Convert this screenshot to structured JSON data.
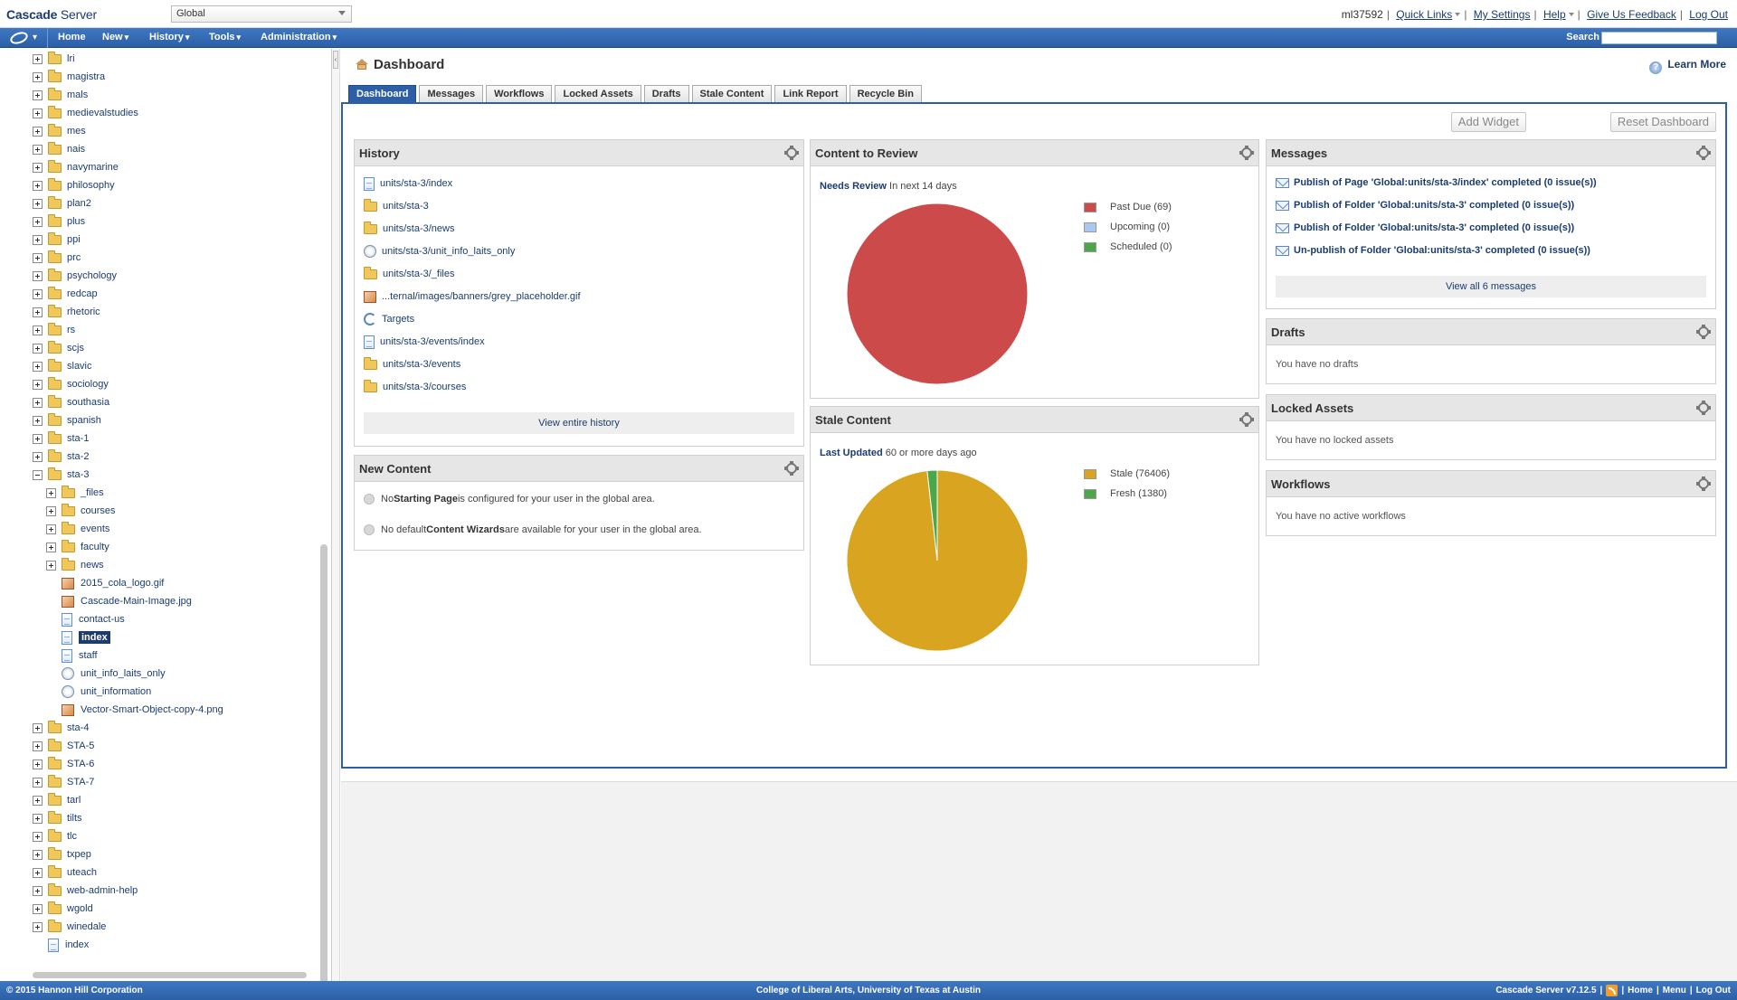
{
  "app": {
    "logo_bold": "Cascade",
    "logo_thin": " Server"
  },
  "site_selector": {
    "value": "Global"
  },
  "top_links": {
    "user": "ml37592",
    "quick_links": "Quick Links",
    "my_settings": "My Settings",
    "help": "Help",
    "feedback": "Give Us Feedback",
    "logout": "Log Out"
  },
  "nav": {
    "home": "Home",
    "new": "New",
    "history": "History",
    "tools": "Tools",
    "administration": "Administration",
    "search_label": "Search",
    "search_value": ""
  },
  "tree": {
    "items": [
      {
        "label": "lri",
        "type": "folder",
        "depth": 0,
        "toggle": "plus"
      },
      {
        "label": "magistra",
        "type": "folder",
        "depth": 0,
        "toggle": "plus"
      },
      {
        "label": "mals",
        "type": "folder",
        "depth": 0,
        "toggle": "plus"
      },
      {
        "label": "medievalstudies",
        "type": "folder",
        "depth": 0,
        "toggle": "plus"
      },
      {
        "label": "mes",
        "type": "folder",
        "depth": 0,
        "toggle": "plus"
      },
      {
        "label": "nais",
        "type": "folder",
        "depth": 0,
        "toggle": "plus"
      },
      {
        "label": "navymarine",
        "type": "folder",
        "depth": 0,
        "toggle": "plus"
      },
      {
        "label": "philosophy",
        "type": "folder",
        "depth": 0,
        "toggle": "plus"
      },
      {
        "label": "plan2",
        "type": "folder",
        "depth": 0,
        "toggle": "plus"
      },
      {
        "label": "plus",
        "type": "folder",
        "depth": 0,
        "toggle": "plus"
      },
      {
        "label": "ppi",
        "type": "folder",
        "depth": 0,
        "toggle": "plus"
      },
      {
        "label": "prc",
        "type": "folder",
        "depth": 0,
        "toggle": "plus"
      },
      {
        "label": "psychology",
        "type": "folder",
        "depth": 0,
        "toggle": "plus"
      },
      {
        "label": "redcap",
        "type": "folder",
        "depth": 0,
        "toggle": "plus"
      },
      {
        "label": "rhetoric",
        "type": "folder",
        "depth": 0,
        "toggle": "plus"
      },
      {
        "label": "rs",
        "type": "folder",
        "depth": 0,
        "toggle": "plus"
      },
      {
        "label": "scjs",
        "type": "folder",
        "depth": 0,
        "toggle": "plus"
      },
      {
        "label": "slavic",
        "type": "folder",
        "depth": 0,
        "toggle": "plus"
      },
      {
        "label": "sociology",
        "type": "folder",
        "depth": 0,
        "toggle": "plus"
      },
      {
        "label": "southasia",
        "type": "folder",
        "depth": 0,
        "toggle": "plus"
      },
      {
        "label": "spanish",
        "type": "folder",
        "depth": 0,
        "toggle": "plus"
      },
      {
        "label": "sta-1",
        "type": "folder",
        "depth": 0,
        "toggle": "plus"
      },
      {
        "label": "sta-2",
        "type": "folder",
        "depth": 0,
        "toggle": "plus"
      },
      {
        "label": "sta-3",
        "type": "folder",
        "depth": 0,
        "toggle": "minus"
      },
      {
        "label": "_files",
        "type": "folder",
        "depth": 1,
        "toggle": "plus"
      },
      {
        "label": "courses",
        "type": "folder",
        "depth": 1,
        "toggle": "plus"
      },
      {
        "label": "events",
        "type": "folder",
        "depth": 1,
        "toggle": "plus"
      },
      {
        "label": "faculty",
        "type": "folder",
        "depth": 1,
        "toggle": "plus"
      },
      {
        "label": "news",
        "type": "folder",
        "depth": 1,
        "toggle": "plus"
      },
      {
        "label": "2015_cola_logo.gif",
        "type": "image",
        "depth": 1,
        "toggle": "none"
      },
      {
        "label": "Cascade-Main-Image.jpg",
        "type": "image",
        "depth": 1,
        "toggle": "none"
      },
      {
        "label": "contact-us",
        "type": "page",
        "depth": 1,
        "toggle": "none"
      },
      {
        "label": "index",
        "type": "page",
        "depth": 1,
        "toggle": "none",
        "selected": true
      },
      {
        "label": "staff",
        "type": "page",
        "depth": 1,
        "toggle": "none"
      },
      {
        "label": "unit_info_laits_only",
        "type": "block",
        "depth": 1,
        "toggle": "none"
      },
      {
        "label": "unit_information",
        "type": "block",
        "depth": 1,
        "toggle": "none"
      },
      {
        "label": "Vector-Smart-Object-copy-4.png",
        "type": "image",
        "depth": 1,
        "toggle": "none"
      },
      {
        "label": "sta-4",
        "type": "folder",
        "depth": 0,
        "toggle": "plus"
      },
      {
        "label": "STA-5",
        "type": "folder",
        "depth": 0,
        "toggle": "plus"
      },
      {
        "label": "STA-6",
        "type": "folder",
        "depth": 0,
        "toggle": "plus"
      },
      {
        "label": "STA-7",
        "type": "folder",
        "depth": 0,
        "toggle": "plus"
      },
      {
        "label": "tarl",
        "type": "folder",
        "depth": 0,
        "toggle": "plus"
      },
      {
        "label": "tilts",
        "type": "folder",
        "depth": 0,
        "toggle": "plus"
      },
      {
        "label": "tlc",
        "type": "folder",
        "depth": 0,
        "toggle": "plus"
      },
      {
        "label": "txpep",
        "type": "folder",
        "depth": 0,
        "toggle": "plus"
      },
      {
        "label": "uteach",
        "type": "folder",
        "depth": 0,
        "toggle": "plus"
      },
      {
        "label": "web-admin-help",
        "type": "folder",
        "depth": 0,
        "toggle": "plus"
      },
      {
        "label": "wgold",
        "type": "folder",
        "depth": 0,
        "toggle": "plus"
      },
      {
        "label": "winedale",
        "type": "folder",
        "depth": 0,
        "toggle": "plus"
      },
      {
        "label": "index",
        "type": "page",
        "depth": 0,
        "toggle": "none"
      }
    ]
  },
  "dashboard": {
    "title": "Dashboard",
    "learn_more": "Learn More",
    "tabs": [
      "Dashboard",
      "Messages",
      "Workflows",
      "Locked Assets",
      "Drafts",
      "Stale Content",
      "Link Report",
      "Recycle Bin"
    ],
    "add_widget": "Add Widget",
    "reset_dashboard": "Reset Dashboard"
  },
  "history_widget": {
    "title": "History",
    "items": [
      {
        "label": "units/sta-3/index",
        "type": "page"
      },
      {
        "label": "units/sta-3",
        "type": "folder"
      },
      {
        "label": "units/sta-3/news",
        "type": "folder"
      },
      {
        "label": "units/sta-3/unit_info_laits_only",
        "type": "block"
      },
      {
        "label": "units/sta-3/_files",
        "type": "folder"
      },
      {
        "label": "...ternal/images/banners/grey_placeholder.gif",
        "type": "image"
      },
      {
        "label": "Targets",
        "type": "target"
      },
      {
        "label": "units/sta-3/events/index",
        "type": "page"
      },
      {
        "label": "units/sta-3/events",
        "type": "folder"
      },
      {
        "label": "units/sta-3/courses",
        "type": "folder"
      }
    ],
    "view_all": "View entire history"
  },
  "new_content_widget": {
    "title": "New Content",
    "line1_pre": "No ",
    "line1_bold": "Starting Page",
    "line1_post": " is configured for your user in the global area.",
    "line2_pre": "No default ",
    "line2_bold": "Content Wizards",
    "line2_post": " are available for your user in the global area."
  },
  "review_widget": {
    "title": "Content to Review",
    "caption_bold": "Needs Review",
    "caption_rest": " In next 14 days",
    "legend": [
      "Past Due (69)",
      "Upcoming (0)",
      "Scheduled (0)"
    ]
  },
  "stale_widget": {
    "title": "Stale Content",
    "caption_bold": "Last Updated",
    "caption_rest": " 60 or more days ago",
    "legend": [
      "Stale (76406)",
      "Fresh (1380)"
    ]
  },
  "messages_widget": {
    "title": "Messages",
    "items": [
      "Publish of Page 'Global:units/sta-3/index' completed (0 issue(s))",
      "Publish of Folder 'Global:units/sta-3' completed (0 issue(s))",
      "Publish of Folder 'Global:units/sta-3' completed (0 issue(s))",
      "Un-publish of Folder 'Global:units/sta-3' completed (0 issue(s))"
    ],
    "view_all": "View all 6 messages"
  },
  "drafts_widget": {
    "title": "Drafts",
    "empty": "You have no drafts"
  },
  "locked_widget": {
    "title": "Locked Assets",
    "empty": "You have no locked assets"
  },
  "workflows_widget": {
    "title": "Workflows",
    "empty": "You have no active workflows"
  },
  "footer": {
    "copyright": "© 2015 Hannon Hill Corporation",
    "center": "College of Liberal Arts, University of Texas at Austin",
    "version": "Cascade Server v7.12.5",
    "home": "Home",
    "menu": "Menu",
    "logout": "Log Out"
  },
  "chart_data": [
    {
      "type": "pie",
      "title": "Content to Review",
      "categories": [
        "Past Due",
        "Upcoming",
        "Scheduled"
      ],
      "values": [
        69,
        0,
        0
      ],
      "colors": [
        "#cc4a4a",
        "#a9c8ef",
        "#4aa84a"
      ]
    },
    {
      "type": "pie",
      "title": "Stale Content",
      "categories": [
        "Stale",
        "Fresh"
      ],
      "values": [
        76406,
        1380
      ],
      "colors": [
        "#d9a420",
        "#4aa84a"
      ]
    }
  ]
}
